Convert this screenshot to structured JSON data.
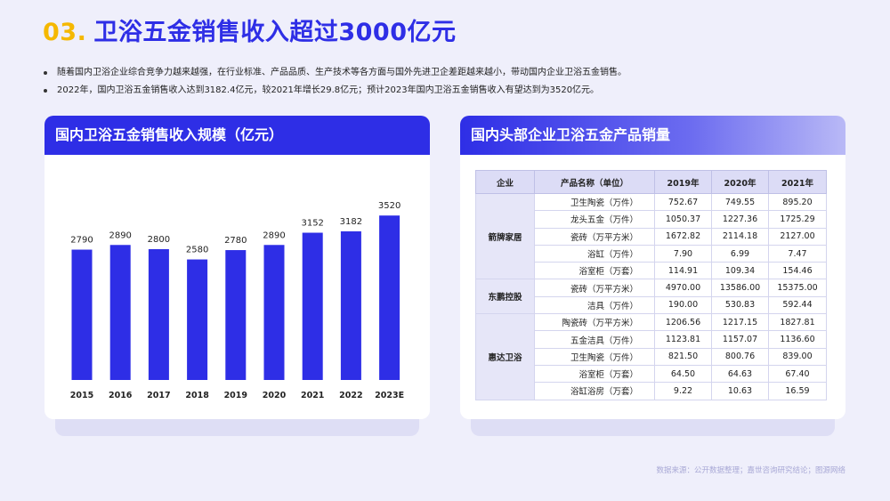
{
  "page": {
    "title_num": "03.",
    "title_text": "卫浴五金销售收入超过3000亿元",
    "bullets": [
      "随着国内卫浴企业综合竞争力越来越强，在行业标准、产品品质、生产技术等各方面与国外先进卫企差距越来越小，带动国内企业卫浴五金销售。",
      "2022年，国内卫浴五金销售收入达到3182.4亿元，较2021年增长29.8亿元；预计2023年国内卫浴五金销售收入有望达到为3520亿元。"
    ],
    "footer": "数据来源：公开数据整理；嘉世咨询研究结论；图源网络"
  },
  "left_card": {
    "title": "国内卫浴五金销售收入规模（亿元）"
  },
  "right_card": {
    "title": "国内头部企业卫浴五金产品销量"
  },
  "colors": {
    "accent": "#2e2ee6",
    "highlight": "#f5b800",
    "background": "#efeffb"
  },
  "chart_data": [
    {
      "type": "bar",
      "categories": [
        "2015",
        "2016",
        "2017",
        "2018",
        "2019",
        "2020",
        "2021",
        "2022",
        "2023E"
      ],
      "values": [
        2790,
        2890,
        2800,
        2580,
        2780,
        2890,
        3152,
        3182,
        3520
      ],
      "title": "国内卫浴五金销售收入规模（亿元）",
      "xlabel": "",
      "ylabel": "",
      "ylim": [
        0,
        4000
      ],
      "grid": false,
      "data_labels": true,
      "bar_color": "#2e2ee6"
    },
    {
      "type": "table",
      "title": "国内头部企业卫浴五金产品销量",
      "headers": [
        "企业",
        "产品名称（单位）",
        "2019年",
        "2020年",
        "2021年"
      ],
      "groups": [
        {
          "company": "箭牌家居",
          "rows": [
            [
              "卫生陶瓷（万件）",
              "752.67",
              "749.55",
              "895.20"
            ],
            [
              "龙头五金（万件）",
              "1050.37",
              "1227.36",
              "1725.29"
            ],
            [
              "瓷砖（万平方米）",
              "1672.82",
              "2114.18",
              "2127.00"
            ],
            [
              "浴缸（万件）",
              "7.90",
              "6.99",
              "7.47"
            ],
            [
              "浴室柜（万套）",
              "114.91",
              "109.34",
              "154.46"
            ]
          ]
        },
        {
          "company": "东鹏控股",
          "rows": [
            [
              "瓷砖（万平方米）",
              "4970.00",
              "13586.00",
              "15375.00"
            ],
            [
              "洁具（万件）",
              "190.00",
              "530.83",
              "592.44"
            ]
          ]
        },
        {
          "company": "惠达卫浴",
          "rows": [
            [
              "陶瓷砖（万平方米）",
              "1206.56",
              "1217.15",
              "1827.81"
            ],
            [
              "五金洁具（万件）",
              "1123.81",
              "1157.07",
              "1136.60"
            ],
            [
              "卫生陶瓷（万件）",
              "821.50",
              "800.76",
              "839.00"
            ],
            [
              "浴室柜（万套）",
              "64.50",
              "64.63",
              "67.40"
            ],
            [
              "浴缸浴房（万套）",
              "9.22",
              "10.63",
              "16.59"
            ]
          ]
        }
      ]
    }
  ]
}
